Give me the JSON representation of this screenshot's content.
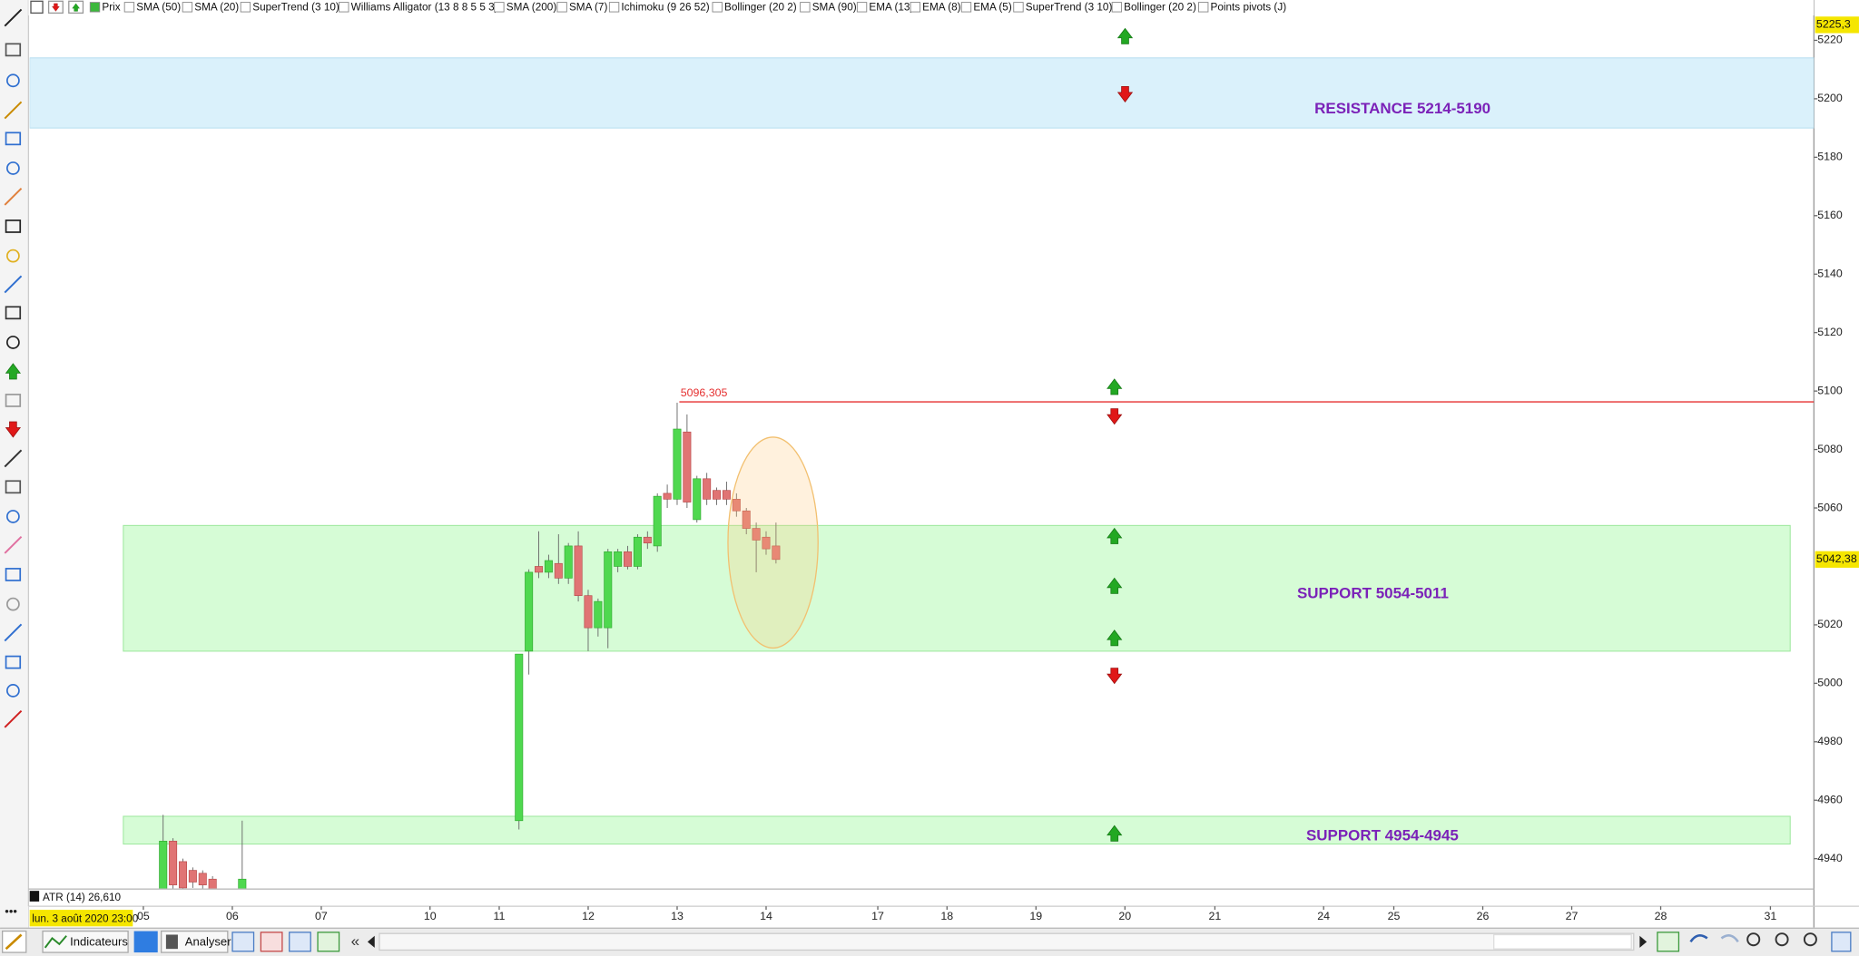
{
  "toolbar": {
    "items": [
      "Prix",
      "SMA (50)",
      "SMA (20)",
      "SuperTrend (3 10)",
      "Williams Alligator (13 8 8 5 5 3)",
      "SMA (200)",
      "SMA (7)",
      "Ichimoku (9 26 52)",
      "Bollinger (20 2)",
      "SMA (90)",
      "EMA (13)",
      "EMA (8)",
      "EMA (5)",
      "SuperTrend (3 10)",
      "Bollinger (20 2)",
      "Points pivots (J)"
    ]
  },
  "chart_data": {
    "type": "candlestick",
    "candles": [
      {
        "x": 2,
        "open": 4928,
        "high": 4955,
        "low": 4925,
        "close": 4946
      },
      {
        "x": 3,
        "open": 4946,
        "high": 4947,
        "low": 4925,
        "close": 4931
      },
      {
        "x": 4,
        "open": 4939,
        "high": 4940,
        "low": 4925,
        "close": 4930
      },
      {
        "x": 5,
        "open": 4936,
        "high": 4937,
        "low": 4930,
        "close": 4932
      },
      {
        "x": 6,
        "open": 4935,
        "high": 4936,
        "low": 4929,
        "close": 4931
      },
      {
        "x": 7,
        "open": 4933,
        "high": 4934,
        "low": 4927,
        "close": 4929
      },
      {
        "x": 10,
        "open": 4929,
        "high": 4953,
        "low": 4926,
        "close": 4933
      },
      {
        "x": 38,
        "open": 4953,
        "high": 5010,
        "low": 4950,
        "close": 5010
      },
      {
        "x": 39,
        "open": 5011,
        "high": 5039,
        "low": 5003,
        "close": 5038
      },
      {
        "x": 40,
        "open": 5040,
        "high": 5052,
        "low": 5036,
        "close": 5038
      },
      {
        "x": 41,
        "open": 5038,
        "high": 5044,
        "low": 5036,
        "close": 5042
      },
      {
        "x": 42,
        "open": 5041,
        "high": 5051,
        "low": 5034,
        "close": 5036
      },
      {
        "x": 43,
        "open": 5036,
        "high": 5048,
        "low": 5034,
        "close": 5047
      },
      {
        "x": 44,
        "open": 5047,
        "high": 5052,
        "low": 5028,
        "close": 5030
      },
      {
        "x": 45,
        "open": 5030,
        "high": 5032,
        "low": 5011,
        "close": 5019
      },
      {
        "x": 46,
        "open": 5019,
        "high": 5029,
        "low": 5016,
        "close": 5028
      },
      {
        "x": 47,
        "open": 5019,
        "high": 5046,
        "low": 5012,
        "close": 5045
      },
      {
        "x": 48,
        "open": 5040,
        "high": 5046,
        "low": 5038,
        "close": 5045
      },
      {
        "x": 49,
        "open": 5045,
        "high": 5047,
        "low": 5039,
        "close": 5040
      },
      {
        "x": 50,
        "open": 5040,
        "high": 5051,
        "low": 5039,
        "close": 5050
      },
      {
        "x": 51,
        "open": 5050,
        "high": 5052,
        "low": 5046,
        "close": 5048
      },
      {
        "x": 52,
        "open": 5047,
        "high": 5065,
        "low": 5045,
        "close": 5064
      },
      {
        "x": 53,
        "open": 5065,
        "high": 5068,
        "low": 5060,
        "close": 5063
      },
      {
        "x": 54,
        "open": 5063,
        "high": 5096,
        "low": 5061,
        "close": 5087
      },
      {
        "x": 55,
        "open": 5086,
        "high": 5092,
        "low": 5060,
        "close": 5062
      },
      {
        "x": 56,
        "open": 5056,
        "high": 5071,
        "low": 5055,
        "close": 5070
      },
      {
        "x": 57,
        "open": 5070,
        "high": 5072,
        "low": 5061,
        "close": 5063
      },
      {
        "x": 58,
        "open": 5066,
        "high": 5067,
        "low": 5061,
        "close": 5063
      },
      {
        "x": 59,
        "open": 5066,
        "high": 5069,
        "low": 5061,
        "close": 5063
      },
      {
        "x": 60,
        "open": 5063,
        "high": 5065,
        "low": 5057,
        "close": 5059
      },
      {
        "x": 61,
        "open": 5059,
        "high": 5060,
        "low": 5051,
        "close": 5053
      },
      {
        "x": 62,
        "open": 5053,
        "high": 5055,
        "low": 5038,
        "close": 5049
      },
      {
        "x": 63,
        "open": 5050,
        "high": 5052,
        "low": 5044,
        "close": 5046
      },
      {
        "x": 64,
        "open": 5047,
        "high": 5055,
        "low": 5041,
        "close": 5042.38
      }
    ],
    "xlim": [
      -11.5,
      169
    ],
    "xticks": [
      {
        "value": 0,
        "label": "05"
      },
      {
        "value": 9,
        "label": "06"
      },
      {
        "value": 18,
        "label": "07"
      },
      {
        "value": 29,
        "label": "10"
      },
      {
        "value": 36,
        "label": "11"
      },
      {
        "value": 45,
        "label": "12"
      },
      {
        "value": 54,
        "label": "13"
      },
      {
        "value": 63,
        "label": "14"
      },
      {
        "value": 74.3,
        "label": "17"
      },
      {
        "value": 81.3,
        "label": "18"
      },
      {
        "value": 90.3,
        "label": "19"
      },
      {
        "value": 99.3,
        "label": "20"
      },
      {
        "value": 108.4,
        "label": "21"
      },
      {
        "value": 119.4,
        "label": "24"
      },
      {
        "value": 126.5,
        "label": "25"
      },
      {
        "value": 135.5,
        "label": "26"
      },
      {
        "value": 144.5,
        "label": "27"
      },
      {
        "value": 153.5,
        "label": "28"
      },
      {
        "value": 164.6,
        "label": "31"
      }
    ],
    "ylim": [
      4929.8,
      5233.8
    ],
    "yticks": [
      4940,
      4960,
      4980,
      5000,
      5020,
      5060,
      5080,
      5100,
      5120,
      5140,
      5160,
      5180,
      5200,
      5220
    ],
    "up_color": "#4fd84f",
    "down_color": "#e07474",
    "zones": [
      {
        "label": "RESISTANCE  5214-5190",
        "high": 5214,
        "low": 5190,
        "color": "#daf1fb"
      },
      {
        "label": "SUPPORT 5054-5011",
        "high": 5054,
        "low": 5011,
        "color": "#d6fcd6"
      },
      {
        "label": "SUPPORT 4954-4945",
        "high": 4954.5,
        "low": 4945,
        "color": "#d6fcd6"
      }
    ],
    "level": {
      "value": 5096.305,
      "label": "5096,305",
      "color": "#e53030"
    },
    "price_labels": [
      {
        "value": 5225.3,
        "label": "5225,3"
      },
      {
        "value": 5042.38,
        "label": "5042,38"
      }
    ],
    "indicator": "ATR (14) 26,610",
    "cursor_date": "lun. 3 août 2020 23:00"
  },
  "bottom_toolbar": {
    "buttons": [
      "Indicateurs",
      "Analyser"
    ]
  }
}
